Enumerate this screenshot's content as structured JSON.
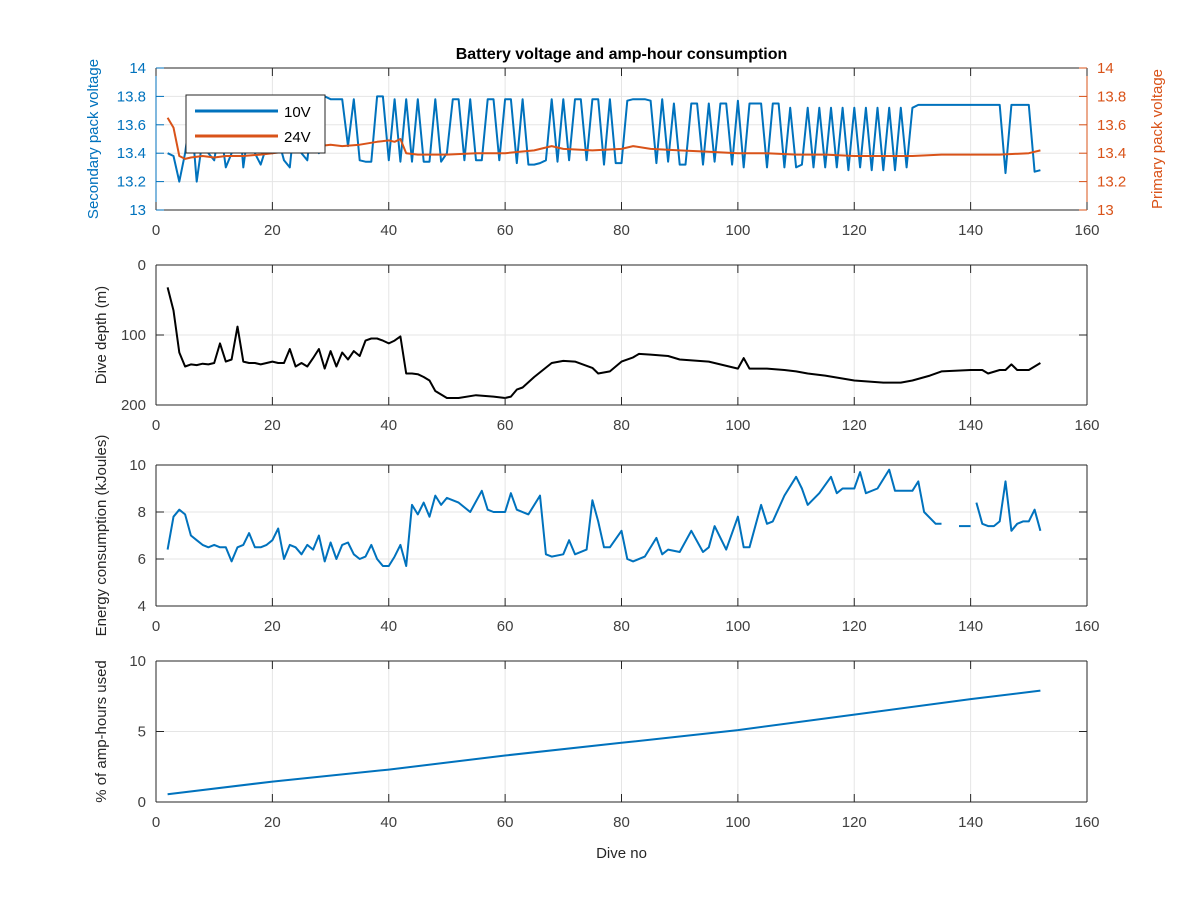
{
  "chart_data": [
    {
      "type": "line",
      "title": "Battery voltage and amp-hour consumption",
      "xlabel": "",
      "ylabel": "Secondary pack voltage",
      "ylabel_right": "Primary pack voltage",
      "xlim": [
        0,
        160
      ],
      "ylim": [
        13,
        14
      ],
      "ylim_right": [
        13,
        14
      ],
      "x_ticks": [
        "0",
        "20",
        "40",
        "60",
        "80",
        "100",
        "120",
        "140",
        "160"
      ],
      "y_ticks": [
        "13",
        "13.2",
        "13.4",
        "13.6",
        "13.8",
        "14"
      ],
      "y_ticks_right": [
        "13",
        "13.2",
        "13.4",
        "13.6",
        "13.8",
        "14"
      ],
      "grid": true,
      "legend": "top-left",
      "series": [
        {
          "name": "10V",
          "axis": "left",
          "color": "#0072BD",
          "x": [
            2,
            3,
            4,
            5,
            6,
            7,
            8,
            9,
            10,
            11,
            12,
            13,
            14,
            15,
            16,
            17,
            18,
            19,
            20,
            21,
            22,
            23,
            24,
            25,
            26,
            27,
            28,
            29,
            30,
            31,
            32,
            33,
            34,
            35,
            36,
            37,
            38,
            39,
            40,
            41,
            42,
            43,
            44,
            45,
            46,
            47,
            48,
            49,
            50,
            51,
            52,
            53,
            54,
            55,
            56,
            57,
            58,
            59,
            60,
            61,
            62,
            63,
            64,
            65,
            66,
            67,
            68,
            69,
            70,
            71,
            72,
            73,
            74,
            75,
            76,
            77,
            78,
            79,
            80,
            81,
            82,
            83,
            84,
            85,
            86,
            87,
            88,
            89,
            90,
            91,
            92,
            93,
            94,
            95,
            96,
            97,
            98,
            99,
            100,
            101,
            102,
            103,
            104,
            105,
            106,
            107,
            108,
            109,
            110,
            111,
            112,
            113,
            114,
            115,
            116,
            117,
            118,
            119,
            120,
            121,
            122,
            123,
            124,
            125,
            126,
            127,
            128,
            129,
            130,
            131,
            132,
            133,
            134,
            135,
            136,
            137,
            138,
            139,
            140,
            141,
            142,
            143,
            144,
            145,
            146,
            147,
            148,
            149,
            150,
            151,
            152
          ],
          "values": [
            13.4,
            13.38,
            13.2,
            13.4,
            13.7,
            13.2,
            13.5,
            13.4,
            13.35,
            13.6,
            13.3,
            13.4,
            13.8,
            13.3,
            13.6,
            13.4,
            13.32,
            13.45,
            13.4,
            13.5,
            13.35,
            13.3,
            13.7,
            13.4,
            13.35,
            13.7,
            13.4,
            13.8,
            13.78,
            13.78,
            13.78,
            13.45,
            13.78,
            13.35,
            13.34,
            13.34,
            13.8,
            13.8,
            13.35,
            13.78,
            13.34,
            13.78,
            13.34,
            13.78,
            13.34,
            13.34,
            13.78,
            13.34,
            13.4,
            13.78,
            13.78,
            13.35,
            13.78,
            13.35,
            13.35,
            13.78,
            13.78,
            13.35,
            13.78,
            13.78,
            13.33,
            13.78,
            13.32,
            13.32,
            13.33,
            13.35,
            13.78,
            13.34,
            13.78,
            13.35,
            13.78,
            13.78,
            13.35,
            13.78,
            13.78,
            13.32,
            13.78,
            13.33,
            13.33,
            13.77,
            13.78,
            13.78,
            13.78,
            13.77,
            13.33,
            13.78,
            13.34,
            13.75,
            13.32,
            13.32,
            13.75,
            13.75,
            13.32,
            13.75,
            13.34,
            13.75,
            13.75,
            13.32,
            13.77,
            13.3,
            13.75,
            13.75,
            13.75,
            13.3,
            13.75,
            13.75,
            13.3,
            13.72,
            13.3,
            13.32,
            13.72,
            13.3,
            13.72,
            13.3,
            13.72,
            13.3,
            13.72,
            13.28,
            13.72,
            13.3,
            13.72,
            13.28,
            13.72,
            13.28,
            13.72,
            13.28,
            13.72,
            13.3,
            13.72,
            13.74,
            13.74,
            13.74,
            13.74,
            13.74,
            13.74,
            13.74,
            13.74,
            13.74,
            13.74,
            13.74,
            13.74,
            13.74,
            13.74,
            13.74,
            13.26,
            13.74,
            13.74,
            13.74,
            13.74,
            13.27,
            13.28
          ]
        },
        {
          "name": "24V",
          "axis": "right",
          "color": "#D95319",
          "x": [
            2,
            3,
            4,
            5,
            6,
            8,
            10,
            12,
            15,
            18,
            20,
            22,
            25,
            28,
            30,
            32,
            35,
            38,
            40,
            41,
            42,
            43,
            45,
            50,
            55,
            60,
            65,
            68,
            70,
            75,
            80,
            82,
            85,
            90,
            95,
            100,
            105,
            110,
            115,
            120,
            125,
            130,
            135,
            140,
            145,
            150,
            152
          ],
          "values": [
            13.65,
            13.58,
            13.38,
            13.36,
            13.37,
            13.38,
            13.37,
            13.38,
            13.38,
            13.39,
            13.4,
            13.41,
            13.42,
            13.45,
            13.46,
            13.45,
            13.46,
            13.48,
            13.49,
            13.48,
            13.5,
            13.4,
            13.39,
            13.39,
            13.4,
            13.4,
            13.42,
            13.45,
            13.43,
            13.42,
            13.43,
            13.45,
            13.43,
            13.42,
            13.41,
            13.4,
            13.4,
            13.39,
            13.39,
            13.38,
            13.38,
            13.38,
            13.39,
            13.39,
            13.39,
            13.4,
            13.42
          ]
        }
      ]
    },
    {
      "type": "line",
      "title": "",
      "xlabel": "",
      "ylabel": "Dive depth (m)",
      "xlim": [
        0,
        160
      ],
      "ylim": [
        200,
        0
      ],
      "y_reversed": true,
      "x_ticks": [
        "0",
        "20",
        "40",
        "60",
        "80",
        "100",
        "120",
        "140",
        "160"
      ],
      "y_ticks": [
        "0",
        "100",
        "200"
      ],
      "grid": true,
      "series": [
        {
          "name": "",
          "color": "#000000",
          "x": [
            2,
            3,
            4,
            5,
            6,
            7,
            8,
            9,
            10,
            11,
            12,
            13,
            14,
            15,
            16,
            17,
            18,
            19,
            20,
            21,
            22,
            23,
            24,
            25,
            26,
            27,
            28,
            29,
            30,
            31,
            32,
            33,
            34,
            35,
            36,
            37,
            38,
            39,
            40,
            41,
            42,
            43,
            44,
            45,
            46,
            47,
            48,
            49,
            50,
            52,
            55,
            58,
            60,
            61,
            62,
            63,
            65,
            68,
            70,
            72,
            75,
            76,
            78,
            80,
            82,
            83,
            85,
            88,
            90,
            95,
            100,
            101,
            102,
            105,
            108,
            110,
            112,
            115,
            120,
            125,
            128,
            130,
            133,
            135,
            140,
            142,
            143,
            145,
            146,
            147,
            148,
            150,
            152
          ],
          "values": [
            32,
            65,
            125,
            145,
            142,
            143,
            141,
            142,
            140,
            112,
            138,
            135,
            88,
            138,
            140,
            140,
            142,
            140,
            138,
            140,
            140,
            120,
            145,
            140,
            145,
            133,
            120,
            148,
            123,
            145,
            125,
            135,
            123,
            130,
            108,
            105,
            105,
            108,
            112,
            108,
            102,
            155,
            155,
            156,
            160,
            165,
            180,
            185,
            190,
            190,
            186,
            188,
            190,
            188,
            178,
            175,
            160,
            140,
            137,
            138,
            147,
            155,
            152,
            138,
            132,
            127,
            128,
            130,
            135,
            138,
            148,
            133,
            148,
            148,
            150,
            152,
            155,
            158,
            165,
            168,
            168,
            165,
            158,
            152,
            150,
            150,
            155,
            150,
            150,
            142,
            150,
            150,
            140
          ]
        }
      ]
    },
    {
      "type": "line",
      "title": "",
      "xlabel": "",
      "ylabel": "Energy consumption (kJoules)",
      "xlim": [
        0,
        160
      ],
      "ylim": [
        4,
        10
      ],
      "x_ticks": [
        "0",
        "20",
        "40",
        "60",
        "80",
        "100",
        "120",
        "140",
        "160"
      ],
      "y_ticks": [
        "4",
        "6",
        "8",
        "10"
      ],
      "grid": true,
      "series": [
        {
          "name": "",
          "color": "#0072BD",
          "x": [
            2,
            3,
            4,
            5,
            6,
            7,
            8,
            9,
            10,
            11,
            12,
            13,
            14,
            15,
            16,
            17,
            18,
            19,
            20,
            21,
            22,
            23,
            24,
            25,
            26,
            27,
            28,
            29,
            30,
            31,
            32,
            33,
            34,
            35,
            36,
            37,
            38,
            39,
            40,
            41,
            42,
            43,
            44,
            45,
            46,
            47,
            48,
            49,
            50,
            52,
            54,
            56,
            57,
            58,
            60,
            61,
            62,
            64,
            66,
            67,
            68,
            70,
            71,
            72,
            74,
            75,
            76,
            77,
            78,
            80,
            81,
            82,
            84,
            86,
            87,
            88,
            90,
            92,
            94,
            95,
            96,
            98,
            100,
            101,
            102,
            104,
            105,
            106,
            108,
            110,
            111,
            112,
            114,
            116,
            117,
            118,
            120,
            121,
            122,
            124,
            126,
            127,
            128,
            130,
            131,
            132,
            134,
            135
          ],
          "values": [
            6.4,
            7.8,
            8.1,
            7.9,
            7.0,
            6.8,
            6.6,
            6.5,
            6.6,
            6.5,
            6.5,
            5.9,
            6.5,
            6.6,
            7.1,
            6.5,
            6.5,
            6.6,
            6.8,
            7.3,
            6.0,
            6.6,
            6.5,
            6.2,
            6.6,
            6.4,
            7.0,
            5.9,
            6.7,
            6.0,
            6.6,
            6.7,
            6.2,
            6.0,
            6.1,
            6.6,
            6.0,
            5.7,
            5.7,
            6.1,
            6.6,
            5.7,
            8.3,
            7.9,
            8.4,
            7.8,
            8.7,
            8.3,
            8.6,
            8.4,
            8.0,
            8.9,
            8.1,
            8.0,
            8.0,
            8.8,
            8.1,
            7.9,
            8.7,
            6.2,
            6.1,
            6.2,
            6.8,
            6.2,
            6.4,
            8.5,
            7.6,
            6.5,
            6.5,
            7.2,
            6.0,
            5.9,
            6.1,
            6.9,
            6.2,
            6.4,
            6.3,
            7.2,
            6.3,
            6.5,
            7.4,
            6.4,
            7.8,
            6.5,
            6.5,
            8.3,
            7.5,
            7.6,
            8.7,
            9.5,
            9.0,
            8.3,
            8.8,
            9.5,
            8.8,
            9.0,
            9.0,
            9.7,
            8.8,
            9.0,
            9.8,
            8.9,
            8.9,
            8.9,
            9.3,
            8.0,
            7.5,
            7.5
          ]
        },
        {
          "name": "",
          "color": "#0072BD",
          "x": [
            138,
            140
          ],
          "values": [
            7.4,
            7.4
          ]
        },
        {
          "name": "",
          "color": "#0072BD",
          "x": [
            141,
            142,
            143,
            144,
            145,
            146,
            147,
            148,
            149,
            150,
            151,
            152
          ],
          "values": [
            8.4,
            7.5,
            7.4,
            7.4,
            7.6,
            9.3,
            7.2,
            7.5,
            7.6,
            7.6,
            8.1,
            7.2
          ]
        }
      ]
    },
    {
      "type": "line",
      "title": "",
      "xlabel": "Dive no",
      "ylabel": "% of amp-hours used",
      "xlim": [
        0,
        160
      ],
      "ylim": [
        0,
        10
      ],
      "x_ticks": [
        "0",
        "20",
        "40",
        "60",
        "80",
        "100",
        "120",
        "140",
        "160"
      ],
      "y_ticks": [
        "0",
        "5",
        "10"
      ],
      "grid": true,
      "series": [
        {
          "name": "",
          "color": "#0072BD",
          "x": [
            2,
            20,
            40,
            60,
            80,
            100,
            120,
            140,
            152
          ],
          "values": [
            0.55,
            1.45,
            2.3,
            3.3,
            4.2,
            5.1,
            6.2,
            7.3,
            7.9
          ]
        }
      ]
    }
  ]
}
